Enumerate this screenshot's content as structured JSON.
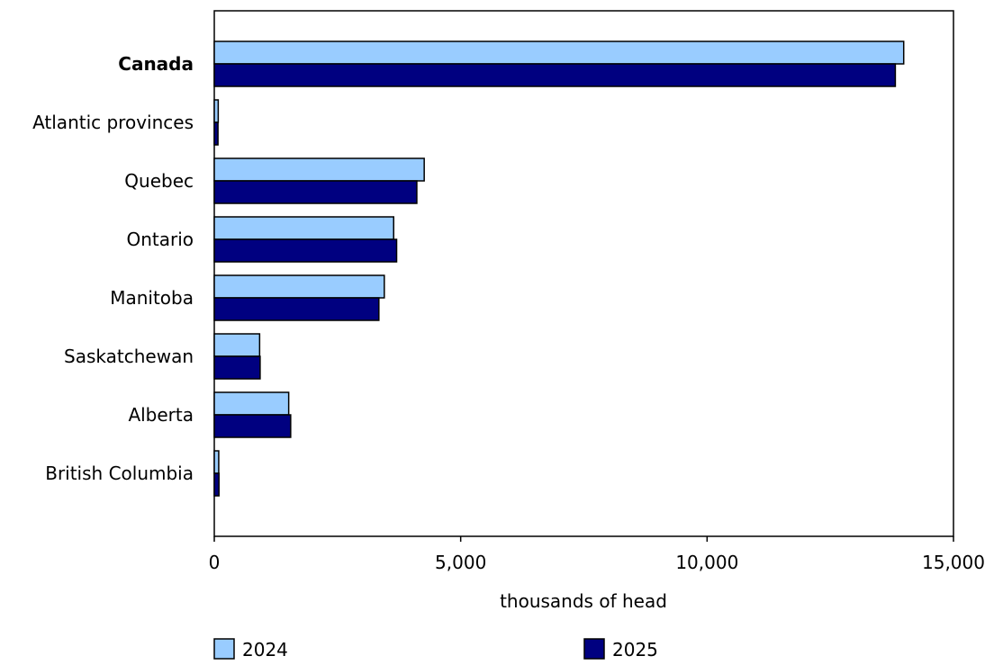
{
  "chart_data": {
    "type": "bar",
    "orientation": "horizontal",
    "categories": [
      "Canada",
      "Atlantic provinces",
      "Quebec",
      "Ontario",
      "Manitoba",
      "Saskatchewan",
      "Alberta",
      "British Columbia"
    ],
    "bold_categories": [
      "Canada"
    ],
    "series": [
      {
        "name": "2024",
        "color": "#99ccff",
        "values": [
          13990,
          80,
          4260,
          3640,
          3450,
          920,
          1510,
          90
        ]
      },
      {
        "name": "2025",
        "color": "#000080",
        "values": [
          13820,
          75,
          4110,
          3700,
          3340,
          930,
          1550,
          95
        ]
      }
    ],
    "xlabel": "thousands of head",
    "xlim": [
      0,
      15000
    ],
    "xticks": [
      0,
      5000,
      10000,
      15000
    ],
    "xtick_labels": [
      "0",
      "5,000",
      "10,000",
      "15,000"
    ],
    "grid": false,
    "legend_position": "bottom"
  }
}
